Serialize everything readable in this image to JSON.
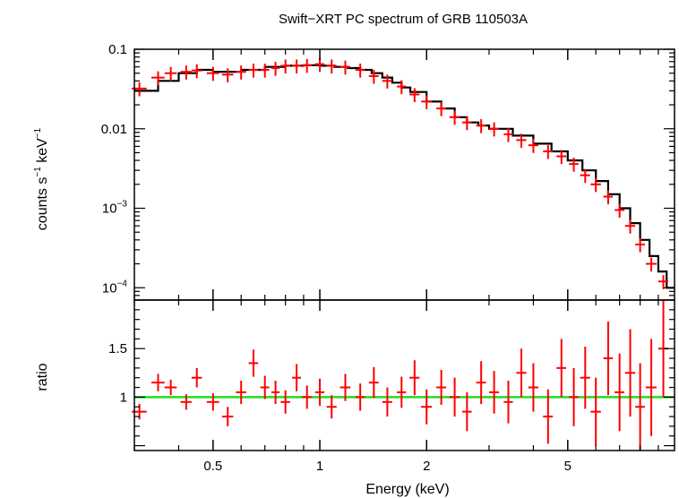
{
  "chart_data": [
    {
      "type": "scatter",
      "title": "Swift−XRT PC spectrum of GRB 110503A",
      "xlabel": "",
      "ylabel_parts": {
        "a": "counts s",
        "a_sup": "−1",
        "b": " keV",
        "b_sup": "−1"
      },
      "xscale": "log",
      "yscale": "log",
      "xlim": [
        0.3,
        10.0
      ],
      "ylim": [
        7e-05,
        0.1
      ],
      "grid": false,
      "y_tick_labels": [
        {
          "value": 0.1,
          "text": "0.1"
        },
        {
          "value": 0.01,
          "text": "0.01"
        },
        {
          "value": 0.001,
          "base": "10",
          "exp": "−3"
        },
        {
          "value": 0.0001,
          "base": "10",
          "exp": "−4"
        }
      ],
      "colors": {
        "data": "#ff0000",
        "model": "#000000"
      },
      "series": [
        {
          "role": "data",
          "x": [
            0.31,
            0.35,
            0.38,
            0.42,
            0.45,
            0.5,
            0.55,
            0.6,
            0.65,
            0.7,
            0.75,
            0.8,
            0.86,
            0.92,
            1.0,
            1.08,
            1.18,
            1.3,
            1.42,
            1.55,
            1.7,
            1.85,
            2.0,
            2.2,
            2.4,
            2.6,
            2.85,
            3.1,
            3.4,
            3.7,
            4.0,
            4.4,
            4.8,
            5.2,
            5.6,
            6.0,
            6.5,
            7.0,
            7.5,
            8.0,
            8.6,
            9.3
          ],
          "y": [
            0.032,
            0.044,
            0.05,
            0.052,
            0.054,
            0.05,
            0.048,
            0.052,
            0.055,
            0.055,
            0.058,
            0.062,
            0.062,
            0.063,
            0.065,
            0.062,
            0.06,
            0.055,
            0.046,
            0.04,
            0.034,
            0.027,
            0.022,
            0.018,
            0.014,
            0.012,
            0.011,
            0.01,
            0.0085,
            0.0072,
            0.0062,
            0.0052,
            0.0045,
            0.0036,
            0.0026,
            0.002,
            0.0014,
            0.00095,
            0.0006,
            0.00035,
            0.0002,
            0.00012
          ],
          "xerr": [
            0.015,
            0.015,
            0.015,
            0.015,
            0.015,
            0.02,
            0.02,
            0.02,
            0.02,
            0.02,
            0.02,
            0.025,
            0.025,
            0.03,
            0.03,
            0.035,
            0.04,
            0.04,
            0.045,
            0.05,
            0.05,
            0.06,
            0.07,
            0.07,
            0.08,
            0.08,
            0.09,
            0.1,
            0.1,
            0.12,
            0.13,
            0.14,
            0.15,
            0.16,
            0.18,
            0.2,
            0.2,
            0.22,
            0.25,
            0.25,
            0.3,
            0.3
          ],
          "yerr_frac": 0.2
        },
        {
          "role": "model",
          "x": [
            0.3,
            0.35,
            0.4,
            0.45,
            0.5,
            0.6,
            0.7,
            0.8,
            0.9,
            1.0,
            1.1,
            1.2,
            1.3,
            1.4,
            1.5,
            1.6,
            1.7,
            1.8,
            2.0,
            2.2,
            2.4,
            2.6,
            2.8,
            3.0,
            3.5,
            4.0,
            4.5,
            5.0,
            5.5,
            6.0,
            6.5,
            7.0,
            7.5,
            8.0,
            8.5,
            9.0,
            9.5,
            10.0
          ],
          "y": [
            0.03,
            0.04,
            0.05,
            0.055,
            0.052,
            0.055,
            0.06,
            0.062,
            0.063,
            0.062,
            0.06,
            0.058,
            0.055,
            0.05,
            0.044,
            0.038,
            0.033,
            0.029,
            0.022,
            0.018,
            0.014,
            0.012,
            0.011,
            0.01,
            0.0082,
            0.0065,
            0.0052,
            0.004,
            0.003,
            0.0022,
            0.0015,
            0.001,
            0.00065,
            0.0004,
            0.00025,
            0.00016,
            0.0001,
            7e-05
          ]
        }
      ]
    },
    {
      "type": "scatter",
      "title": "",
      "xlabel": "Energy (keV)",
      "ylabel": "ratio",
      "xscale": "log",
      "xlim": [
        0.3,
        10.0
      ],
      "ylim": [
        0.45,
        2.0
      ],
      "grid": false,
      "x_tick_labels": [
        {
          "value": 0.5,
          "text": "0.5"
        },
        {
          "value": 1,
          "text": "1"
        },
        {
          "value": 2,
          "text": "2"
        },
        {
          "value": 5,
          "text": "5"
        }
      ],
      "y_tick_labels": [
        {
          "value": 1.5,
          "text": "1.5"
        },
        {
          "value": 1,
          "text": "1"
        }
      ],
      "reference_line": {
        "y": 1.0,
        "color": "#22dd22"
      },
      "colors": {
        "data": "#ff0000"
      },
      "series": [
        {
          "role": "ratio",
          "x": [
            0.31,
            0.35,
            0.38,
            0.42,
            0.45,
            0.5,
            0.55,
            0.6,
            0.65,
            0.7,
            0.75,
            0.8,
            0.86,
            0.92,
            1.0,
            1.08,
            1.18,
            1.3,
            1.42,
            1.55,
            1.7,
            1.85,
            2.0,
            2.2,
            2.4,
            2.6,
            2.85,
            3.1,
            3.4,
            3.7,
            4.0,
            4.4,
            4.8,
            5.2,
            5.6,
            6.0,
            6.5,
            7.0,
            7.5,
            8.0,
            8.6,
            9.3
          ],
          "y": [
            0.85,
            1.15,
            1.1,
            0.95,
            1.2,
            0.95,
            0.8,
            1.05,
            1.35,
            1.1,
            1.05,
            0.95,
            1.2,
            1.0,
            1.05,
            0.9,
            1.1,
            1.0,
            1.15,
            0.95,
            1.05,
            1.2,
            0.9,
            1.1,
            1.0,
            0.85,
            1.15,
            1.05,
            0.95,
            1.25,
            1.1,
            0.8,
            1.3,
            1.0,
            1.2,
            0.85,
            1.4,
            1.05,
            1.25,
            0.9,
            1.1,
            1.5
          ],
          "xerr": [
            0.015,
            0.015,
            0.015,
            0.015,
            0.015,
            0.02,
            0.02,
            0.02,
            0.02,
            0.02,
            0.02,
            0.025,
            0.025,
            0.03,
            0.03,
            0.035,
            0.04,
            0.04,
            0.045,
            0.05,
            0.05,
            0.06,
            0.07,
            0.07,
            0.08,
            0.08,
            0.09,
            0.1,
            0.1,
            0.12,
            0.13,
            0.14,
            0.15,
            0.16,
            0.18,
            0.2,
            0.2,
            0.22,
            0.25,
            0.25,
            0.3,
            0.3
          ],
          "yerr": [
            0.08,
            0.09,
            0.08,
            0.08,
            0.1,
            0.09,
            0.1,
            0.12,
            0.14,
            0.12,
            0.12,
            0.12,
            0.14,
            0.12,
            0.14,
            0.12,
            0.14,
            0.14,
            0.16,
            0.15,
            0.16,
            0.18,
            0.18,
            0.18,
            0.2,
            0.2,
            0.22,
            0.22,
            0.22,
            0.25,
            0.25,
            0.28,
            0.3,
            0.3,
            0.32,
            0.35,
            0.38,
            0.4,
            0.45,
            0.45,
            0.5,
            0.5
          ]
        }
      ]
    }
  ]
}
